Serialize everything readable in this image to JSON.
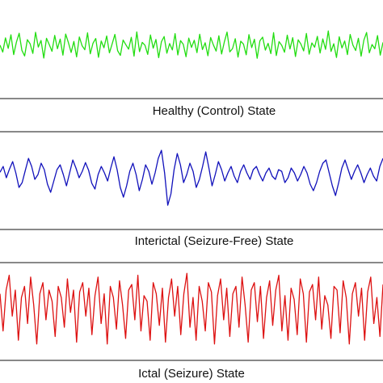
{
  "chart_data": [
    {
      "type": "line",
      "title": "Healthy (Control) State",
      "xlabel": "",
      "ylabel": "",
      "ylim": [
        -1,
        1
      ],
      "grid": false,
      "axes_visible": false,
      "series": [
        {
          "color": "#22dd11",
          "pattern": "low-amplitude fast irregular activity",
          "values": [
            0.05,
            -0.31,
            0.42,
            -0.12,
            0.58,
            -0.44,
            0.2,
            0.66,
            -0.22,
            -0.51,
            0.33,
            0.12,
            -0.38,
            0.71,
            -0.05,
            0.29,
            -0.62,
            0.4,
            0.08,
            -0.27,
            0.55,
            -0.14,
            0.36,
            -0.47,
            0.62,
            0.18,
            -0.33,
            0.24,
            -0.56,
            0.47,
            0.02,
            -0.19,
            0.68,
            -0.4,
            0.15,
            0.39,
            -0.58,
            0.26,
            -0.09,
            0.52,
            -0.35,
            0.11,
            0.6,
            -0.24,
            -0.48,
            0.31,
            0.07,
            -0.16,
            0.45,
            -0.52,
            0.73,
            -0.29,
            0.19,
            0.04,
            -0.43,
            0.57,
            -0.11,
            0.34,
            -0.6,
            0.22,
            0.49,
            -0.37,
            0.13,
            -0.2,
            0.64,
            -0.46,
            0.28,
            0.09,
            -0.55,
            0.41,
            -0.07,
            0.3,
            -0.34,
            0.61,
            -0.18,
            0.17,
            -0.5,
            0.44,
            0.06,
            -0.26,
            0.53,
            -0.41,
            0.21,
            0.72,
            -0.3,
            -0.13,
            0.38,
            -0.57,
            0.25,
            0.1,
            -0.45,
            0.59,
            -0.08,
            0.35,
            -0.63,
            0.27,
            0.46,
            -0.21,
            0.14,
            -0.39,
            0.69,
            -0.49,
            0.23,
            0.03,
            -0.32,
            0.56,
            -0.15,
            0.43,
            -0.54,
            0.32,
            0.1,
            -0.25,
            0.65,
            -0.42,
            0.16,
            -0.06,
            0.5,
            -0.36,
            0.37,
            -0.17,
            0.78,
            -0.28,
            0.12,
            -0.59,
            0.48,
            -0.1,
            0.26,
            -0.44,
            0.6,
            0.05,
            -0.23,
            0.4,
            -0.52,
            0.3,
            0.7,
            -0.35,
            0.08,
            -0.14,
            0.54,
            -0.47,
            0.19
          ]
        }
      ]
    },
    {
      "type": "line",
      "title": "Interictal (Seizure-Free) State",
      "xlabel": "",
      "ylabel": "",
      "ylim": [
        -1,
        1
      ],
      "grid": false,
      "axes_visible": false,
      "series": [
        {
          "color": "#1111bb",
          "pattern": "moderate-amplitude slower waves with occasional sharp deflections",
          "values": [
            0.12,
            0.3,
            -0.05,
            0.22,
            0.45,
            0.1,
            -0.35,
            -0.2,
            0.18,
            0.55,
            0.3,
            -0.1,
            0.05,
            0.4,
            0.2,
            -0.25,
            -0.5,
            -0.15,
            0.2,
            0.35,
            0.05,
            -0.3,
            0.1,
            0.5,
            0.25,
            -0.05,
            0.15,
            0.42,
            0.18,
            -0.22,
            -0.4,
            0.05,
            0.3,
            0.1,
            -0.15,
            0.25,
            0.6,
            0.2,
            -0.35,
            -0.65,
            -0.3,
            0.15,
            0.4,
            0.05,
            -0.45,
            -0.1,
            0.35,
            0.15,
            -0.25,
            0.1,
            0.55,
            0.8,
            0.1,
            -0.9,
            -0.55,
            0.2,
            0.7,
            0.35,
            -0.2,
            0.05,
            0.4,
            0.15,
            -0.35,
            -0.1,
            0.3,
            0.75,
            0.25,
            -0.3,
            0.05,
            0.45,
            0.2,
            -0.15,
            0.1,
            0.3,
            0.0,
            -0.2,
            0.15,
            0.35,
            0.1,
            -0.1,
            0.2,
            0.3,
            0.05,
            -0.15,
            0.1,
            0.25,
            0.0,
            -0.1,
            0.2,
            0.15,
            -0.2,
            -0.05,
            0.25,
            0.1,
            -0.15,
            0.05,
            0.3,
            0.1,
            -0.25,
            -0.45,
            -0.2,
            0.15,
            0.4,
            0.5,
            0.1,
            -0.3,
            -0.6,
            -0.2,
            0.25,
            0.5,
            0.2,
            -0.1,
            0.15,
            0.35,
            0.1,
            -0.2,
            0.05,
            0.25,
            0.0,
            -0.15,
            0.3,
            0.55
          ]
        }
      ]
    },
    {
      "type": "line",
      "title": "Ictal (Seizure) State",
      "xlabel": "",
      "ylabel": "",
      "ylim": [
        -1,
        1
      ],
      "grid": false,
      "axes_visible": false,
      "series": [
        {
          "color": "#dd1111",
          "pattern": "high-amplitude rhythmic spike discharges",
          "values": [
            0.4,
            -0.6,
            0.5,
            0.9,
            -0.2,
            0.5,
            -0.85,
            0.3,
            0.6,
            -0.4,
            0.85,
            0.1,
            -0.95,
            0.4,
            0.7,
            -0.3,
            0.5,
            0.2,
            -0.75,
            0.6,
            0.3,
            -0.5,
            0.8,
            -0.1,
            0.5,
            -0.9,
            0.45,
            0.7,
            -0.2,
            0.55,
            -0.7,
            0.35,
            0.85,
            -0.4,
            0.4,
            -0.95,
            0.6,
            0.3,
            -0.55,
            0.75,
            0.1,
            -0.8,
            0.5,
            0.65,
            -0.3,
            0.9,
            -0.6,
            0.35,
            0.2,
            -0.85,
            0.7,
            0.4,
            -0.45,
            0.55,
            -0.9,
            0.3,
            0.8,
            -0.2,
            0.6,
            -0.7,
            0.4,
            0.95,
            -0.5,
            0.3,
            -0.85,
            0.6,
            0.2,
            -0.6,
            0.7,
            0.45,
            -0.95,
            0.35,
            0.8,
            -0.3,
            0.55,
            -0.75,
            0.4,
            0.6,
            -0.5,
            0.85,
            0.1,
            -0.9,
            0.5,
            0.7,
            -0.35,
            0.6,
            -0.8,
            0.3,
            0.75,
            -0.45,
            0.5,
            0.9,
            -0.6,
            0.35,
            -0.85,
            0.55,
            0.25,
            -0.7,
            0.8,
            0.4,
            -0.9,
            0.45,
            0.65,
            -0.3,
            0.85,
            -0.55,
            0.35,
            0.1,
            -0.8,
            0.6,
            0.5,
            -0.65,
            0.75,
            0.3,
            -0.95,
            0.4,
            0.7,
            -0.2,
            0.55,
            -0.85,
            0.45,
            0.85,
            -0.4,
            0.3,
            -0.75,
            0.65
          ]
        }
      ]
    }
  ]
}
